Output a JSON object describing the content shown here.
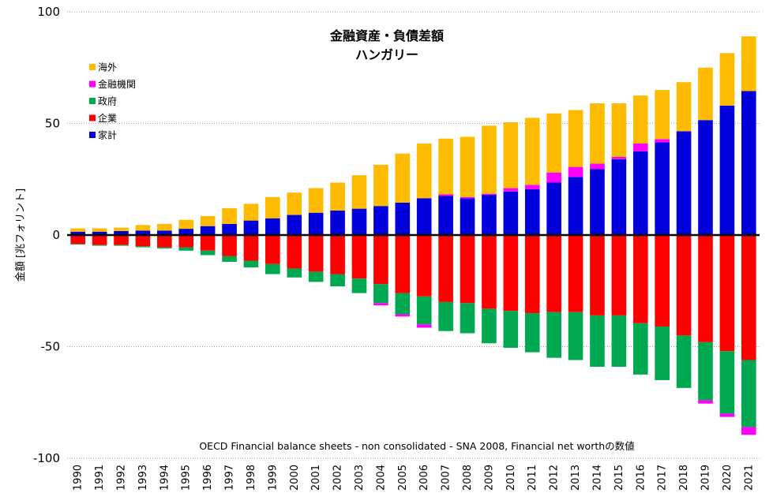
{
  "chart_data": {
    "type": "bar",
    "stacked": true,
    "title": "金融資産・負債差額",
    "subtitle": "ハンガリー",
    "ylabel": "金額 [兆フォリント]",
    "xlabel": "",
    "ylim": [
      -100,
      100
    ],
    "yticks": [
      100,
      50,
      0,
      -50,
      -100
    ],
    "grid": true,
    "legend_position": "top-left",
    "note": "OECD Financial balance sheets - non consolidated - SNA 2008, Financial net worthの数値",
    "categories": [
      "1990",
      "1991",
      "1992",
      "1993",
      "1994",
      "1995",
      "1996",
      "1997",
      "1998",
      "1999",
      "2000",
      "2001",
      "2002",
      "2003",
      "2004",
      "2005",
      "2006",
      "2007",
      "2008",
      "2009",
      "2010",
      "2011",
      "2012",
      "2013",
      "2014",
      "2015",
      "2016",
      "2017",
      "2018",
      "2019",
      "2020",
      "2021"
    ],
    "legend_order": [
      "海外",
      "金融機関",
      "政府",
      "企業",
      "家計"
    ],
    "stack_order": [
      "家計",
      "金融機関",
      "海外",
      "企業",
      "政府"
    ],
    "series": [
      {
        "name": "家計",
        "color": "#0000dd",
        "values": [
          1.5,
          1.5,
          1.8,
          2.0,
          2.0,
          2.8,
          4.0,
          5.0,
          6.5,
          7.5,
          9.0,
          10.0,
          11.0,
          11.8,
          13.0,
          14.5,
          16.5,
          17.5,
          16.5,
          18.0,
          19.5,
          20.5,
          23.5,
          26.0,
          29.5,
          34.0,
          37.5,
          41.5,
          46.5,
          51.5,
          58.0,
          64.5
        ]
      },
      {
        "name": "金融機関",
        "color": "#ff00ff",
        "values": [
          0,
          0,
          0,
          0,
          0,
          0,
          0,
          0,
          0,
          0,
          0,
          0,
          0,
          0,
          0,
          0,
          0,
          0.7,
          0.5,
          0.5,
          1.5,
          2.0,
          4.5,
          4.5,
          2.5,
          1.0,
          3.5,
          1.5,
          0,
          0,
          0,
          0
        ]
      },
      {
        "name": "海外",
        "color": "#ffbb00",
        "values": [
          1.5,
          1.5,
          1.5,
          2.5,
          3.0,
          4.0,
          4.5,
          7.0,
          7.5,
          9.5,
          10.0,
          11.0,
          12.5,
          15.0,
          18.5,
          22.0,
          24.5,
          25.0,
          27.0,
          30.5,
          29.5,
          30.0,
          26.5,
          25.5,
          27.0,
          24.0,
          21.5,
          22.0,
          22.0,
          23.5,
          23.5,
          24.5
        ]
      },
      {
        "name": "企業",
        "color": "#ff0000",
        "values": [
          -4.0,
          -4.5,
          -4.5,
          -5.0,
          -5.5,
          -5.5,
          -7.0,
          -9.5,
          -11.5,
          -13.0,
          -15.0,
          -16.5,
          -17.5,
          -19.5,
          -22.0,
          -26.0,
          -27.5,
          -30.0,
          -30.5,
          -33.0,
          -34.0,
          -35.0,
          -34.5,
          -34.5,
          -36.0,
          -36.0,
          -39.5,
          -41.0,
          -45.0,
          -48.0,
          -52.0,
          -56.0
        ]
      },
      {
        "name": "政府",
        "color": "#00a850",
        "values": [
          -0.3,
          -0.3,
          -0.3,
          -0.5,
          -0.5,
          -1.5,
          -2.0,
          -2.5,
          -3.0,
          -4.5,
          -4.0,
          -4.5,
          -5.5,
          -6.5,
          -8.5,
          -9.5,
          -12.5,
          -13.0,
          -13.5,
          -15.5,
          -16.5,
          -17.5,
          -20.5,
          -21.5,
          -23.0,
          -23.0,
          -23.0,
          -24.0,
          -23.5,
          -26.0,
          -28.0,
          -30.0
        ]
      },
      {
        "name": "金融機関(負)",
        "color": "#ff00ff",
        "values": [
          0,
          0,
          0,
          0,
          0,
          0,
          0,
          0,
          0,
          0,
          0,
          0,
          0,
          0,
          -1.0,
          -1.0,
          -1.5,
          0,
          0,
          0,
          0,
          0,
          0,
          0,
          0,
          0,
          0,
          0,
          0,
          -1.5,
          -1.5,
          -3.5
        ]
      }
    ]
  },
  "legend": [
    {
      "label": "海外",
      "color": "#ffbb00"
    },
    {
      "label": "金融機関",
      "color": "#ff00ff"
    },
    {
      "label": "政府",
      "color": "#00a850"
    },
    {
      "label": "企業",
      "color": "#ff0000"
    },
    {
      "label": "家計",
      "color": "#0000dd"
    }
  ]
}
